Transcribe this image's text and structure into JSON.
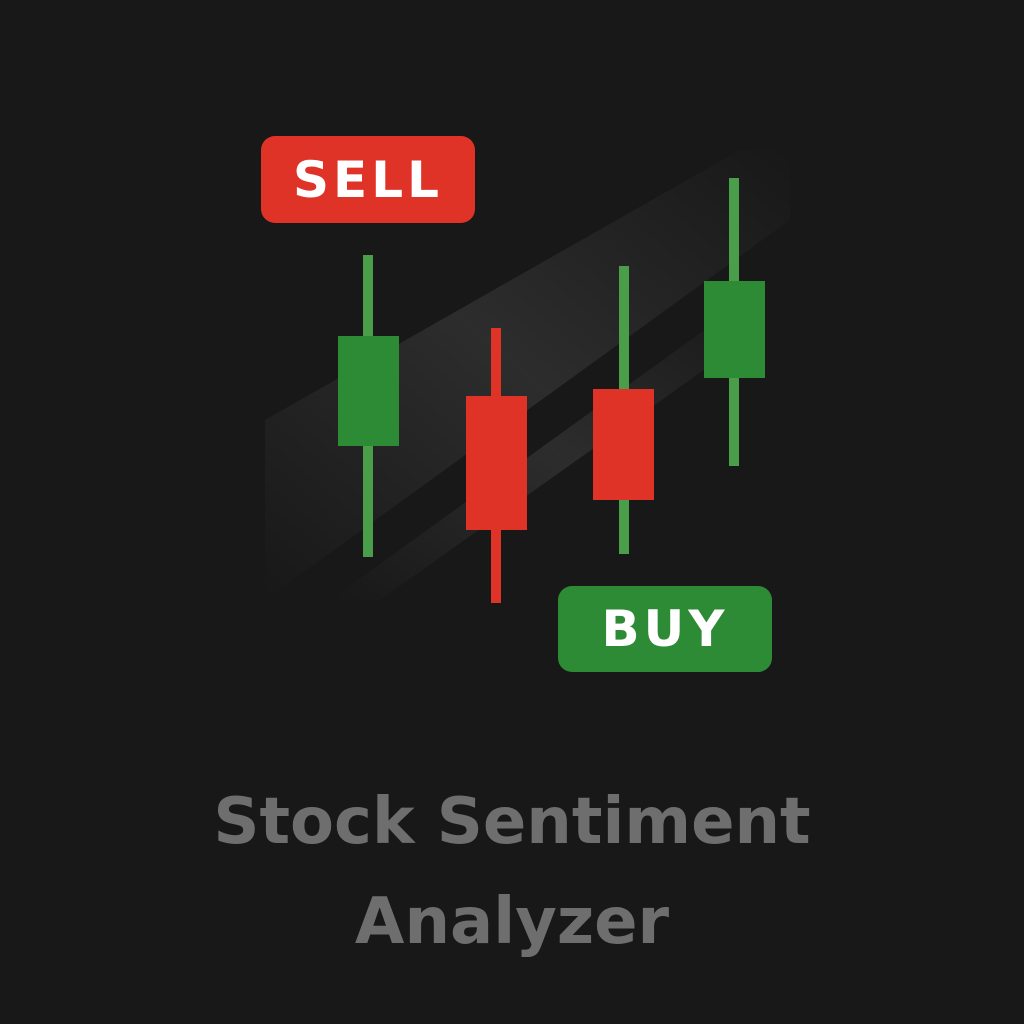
{
  "badges": {
    "sell_label": "SELL",
    "buy_label": "BUY"
  },
  "title": {
    "line1": "Stock Sentiment",
    "line2": "Analyzer"
  },
  "colors": {
    "background": "#181818",
    "bull": "#2e8b35",
    "bull_wick": "#4a9e4a",
    "bear": "#e03327",
    "title": "#6e6e6e"
  },
  "icons": [
    "candlestick-chart-icon"
  ]
}
